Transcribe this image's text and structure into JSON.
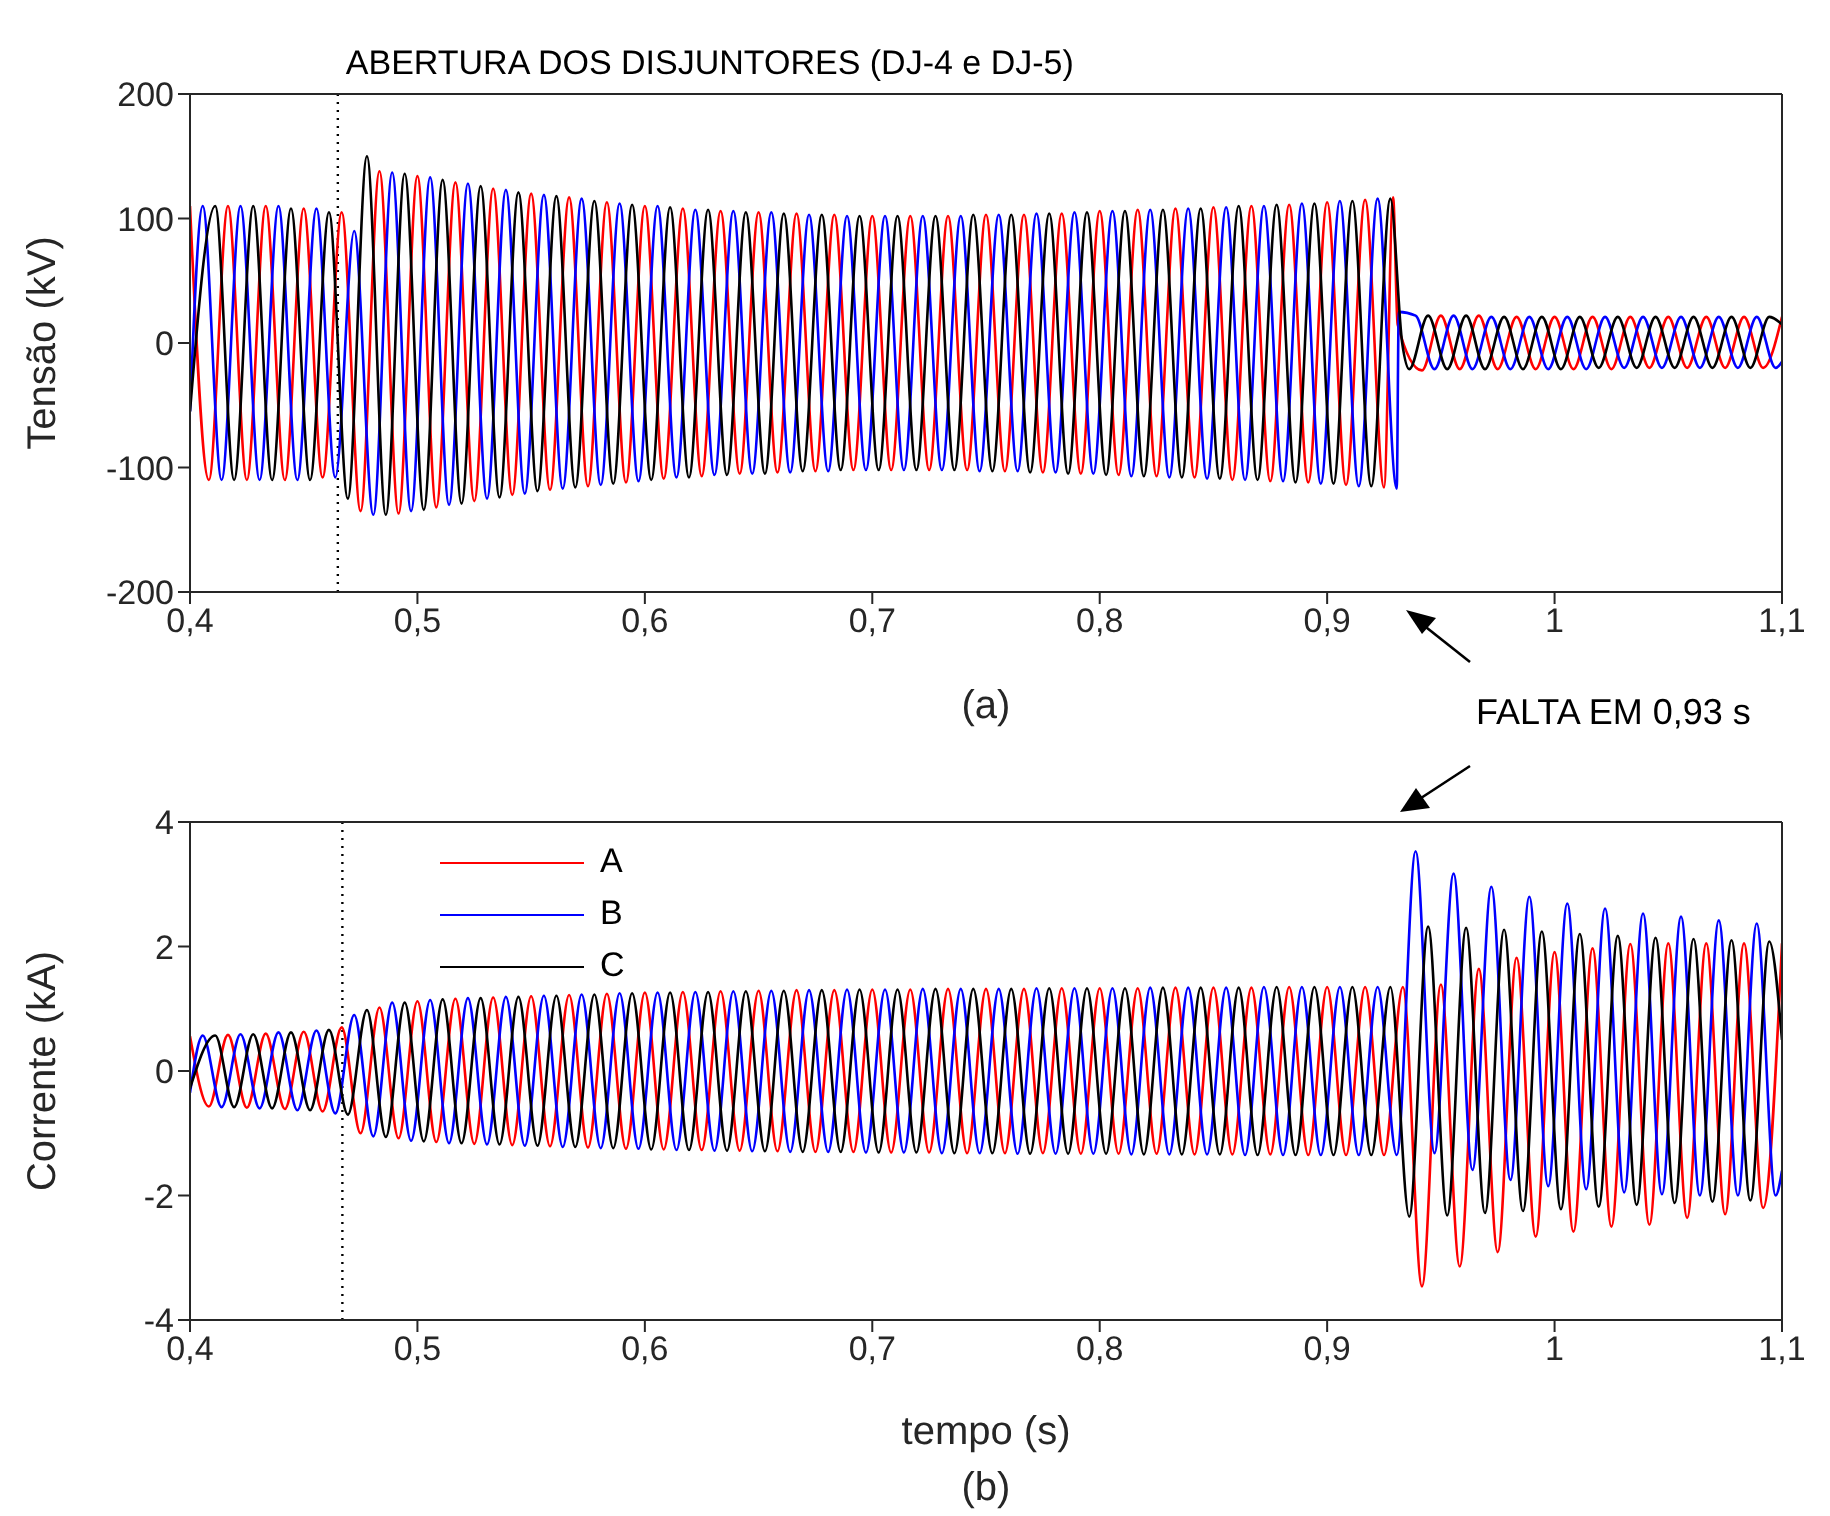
{
  "chart_data": [
    {
      "type": "line",
      "title": "(a)",
      "ylabel": "Tensão (kV)",
      "annotations": [
        "FALTA EM 0,93 s"
      ],
      "xlim": [
        0.4,
        1.1
      ],
      "xticks": [
        {
          "value": 0.4,
          "label": "0,4"
        },
        {
          "value": 0.5,
          "label": "0,5"
        },
        {
          "value": 0.6,
          "label": "0,6"
        },
        {
          "value": 0.7,
          "label": "0,7"
        },
        {
          "value": 0.8,
          "label": "0,8"
        },
        {
          "value": 0.9,
          "label": "0,9"
        },
        1,
        {
          "value": 1.1,
          "label": "1,1"
        }
      ],
      "ylim": [
        -200,
        200
      ],
      "yticks": [
        -200,
        -100,
        0,
        100,
        200
      ],
      "ref_lines": [
        {
          "axis": "x",
          "value": 0.465,
          "label": "ABERTURA DOS DISJUNTORES (DJ-4 e DJ-5)",
          "color": "#000000",
          "line_style": "dotted"
        }
      ],
      "series": [
        {
          "color": "#ff0000",
          "x": [
            0.4,
            0.4083,
            0.4167,
            0.425,
            0.4333,
            0.4417,
            0.45,
            0.4583,
            0.4667,
            0.475,
            0.4833,
            0.4917,
            0.5,
            0.5083,
            0.5167,
            0.525,
            0.5333,
            0.5417,
            0.55,
            0.5583,
            0.5667,
            0.575,
            0.5833,
            0.5917,
            0.6,
            0.6083,
            0.6167,
            0.625,
            0.6333,
            0.6417,
            0.65,
            0.6583,
            0.6667,
            0.675,
            0.6833,
            0.6917,
            0.7,
            0.7083,
            0.7167,
            0.725,
            0.7333,
            0.7417,
            0.75,
            0.7583,
            0.7667,
            0.775,
            0.7833,
            0.7917,
            0.8,
            0.8083,
            0.8167,
            0.825,
            0.8333,
            0.8417,
            0.85,
            0.8583,
            0.8667,
            0.875,
            0.8833,
            0.8917,
            0.9,
            0.9083,
            0.9167,
            0.925,
            0.929,
            0.931,
            0.9417,
            0.95,
            0.9583,
            0.9667,
            0.975,
            0.9833,
            0.9917,
            1.0,
            1.0083,
            1.0167,
            1.025,
            1.0333,
            1.0417,
            1.05,
            1.0583,
            1.0667,
            1.075,
            1.0833,
            1.0917,
            1.1
          ],
          "values": [
            110,
            -110,
            110,
            -110,
            110,
            -110,
            108,
            -108,
            105,
            -135,
            138,
            -137,
            134,
            -132,
            129,
            -127,
            124,
            -122,
            120,
            -118,
            117,
            -115,
            113,
            -112,
            110,
            -109,
            108,
            -107,
            106,
            -105,
            105,
            -104,
            104,
            -103,
            103,
            -102,
            102,
            -102,
            102,
            -102,
            102,
            -102,
            103,
            -103,
            103,
            -104,
            104,
            -105,
            106,
            -106,
            107,
            -107,
            108,
            -108,
            109,
            -110,
            110,
            -111,
            111,
            -112,
            113,
            -114,
            115,
            -116,
            117,
            15,
            -22,
            22,
            -21,
            22,
            -21,
            21,
            -21,
            21,
            -21,
            21,
            -21,
            21,
            -20,
            21,
            -20,
            21,
            -20,
            21,
            -20,
            21
          ]
        },
        {
          "color": "#0000ff",
          "x": [
            0.4,
            0.4056,
            0.4139,
            0.4222,
            0.4306,
            0.4389,
            0.4472,
            0.4556,
            0.4639,
            0.4722,
            0.4806,
            0.4889,
            0.4972,
            0.5056,
            0.5139,
            0.5222,
            0.5306,
            0.5389,
            0.5472,
            0.5556,
            0.5639,
            0.5722,
            0.5806,
            0.5889,
            0.5972,
            0.6056,
            0.6139,
            0.6222,
            0.6306,
            0.6389,
            0.6472,
            0.6556,
            0.6639,
            0.6722,
            0.6806,
            0.6889,
            0.6972,
            0.7056,
            0.7139,
            0.7222,
            0.7306,
            0.7389,
            0.7472,
            0.7556,
            0.7639,
            0.7722,
            0.7806,
            0.7889,
            0.7972,
            0.8056,
            0.8139,
            0.8222,
            0.8306,
            0.8389,
            0.8472,
            0.8556,
            0.8639,
            0.8722,
            0.8806,
            0.8889,
            0.8972,
            0.9056,
            0.9139,
            0.9222,
            0.9306,
            0.9315,
            0.9389,
            0.9472,
            0.9556,
            0.9639,
            0.9722,
            0.9806,
            0.9889,
            0.9972,
            1.0056,
            1.0139,
            1.0222,
            1.0306,
            1.0389,
            1.0472,
            1.0556,
            1.0639,
            1.0722,
            1.0806,
            1.0889,
            1.0972,
            1.1
          ],
          "values": [
            -55,
            110,
            -110,
            110,
            -110,
            110,
            -110,
            108,
            -108,
            90,
            -138,
            137,
            -135,
            133,
            -130,
            128,
            -125,
            123,
            -121,
            119,
            -117,
            116,
            -114,
            112,
            -111,
            110,
            -108,
            107,
            -106,
            106,
            -105,
            105,
            -104,
            103,
            -103,
            102,
            -102,
            102,
            -102,
            102,
            -102,
            102,
            -103,
            103,
            -103,
            104,
            -104,
            105,
            -105,
            106,
            -107,
            107,
            -108,
            108,
            -109,
            109,
            -110,
            110,
            -111,
            112,
            -113,
            114,
            -115,
            116,
            -117,
            25,
            22,
            -21,
            22,
            -21,
            21,
            -21,
            21,
            -21,
            21,
            -21,
            21,
            -20,
            21,
            -20,
            21,
            -20,
            21,
            -20,
            21,
            -20,
            -15
          ]
        },
        {
          "color": "#000000",
          "x": [
            0.4,
            0.4111,
            0.4194,
            0.4278,
            0.4361,
            0.4444,
            0.4528,
            0.4611,
            0.4694,
            0.4778,
            0.4861,
            0.4944,
            0.5028,
            0.5111,
            0.5194,
            0.5278,
            0.5361,
            0.5444,
            0.5528,
            0.5611,
            0.5694,
            0.5778,
            0.5861,
            0.5944,
            0.6028,
            0.6111,
            0.6194,
            0.6278,
            0.6361,
            0.6444,
            0.6528,
            0.6611,
            0.6694,
            0.6778,
            0.6861,
            0.6944,
            0.7028,
            0.7111,
            0.7194,
            0.7278,
            0.7361,
            0.7444,
            0.7528,
            0.7611,
            0.7694,
            0.7778,
            0.7861,
            0.7944,
            0.8028,
            0.8111,
            0.8194,
            0.8278,
            0.8361,
            0.8444,
            0.8528,
            0.8611,
            0.8694,
            0.8778,
            0.8861,
            0.8944,
            0.9028,
            0.9111,
            0.9194,
            0.9278,
            0.933,
            0.9361,
            0.9444,
            0.9528,
            0.9611,
            0.9694,
            0.9778,
            0.9861,
            0.9944,
            1.0028,
            1.0111,
            1.0194,
            1.0278,
            1.0361,
            1.0444,
            1.0528,
            1.0611,
            1.0694,
            1.0778,
            1.0861,
            1.0944,
            1.1
          ],
          "values": [
            -55,
            110,
            -110,
            110,
            -110,
            108,
            -110,
            105,
            -125,
            150,
            -138,
            136,
            -134,
            131,
            -129,
            126,
            -124,
            121,
            -119,
            118,
            -116,
            114,
            -113,
            111,
            -110,
            109,
            -108,
            107,
            -106,
            105,
            -105,
            104,
            -103,
            103,
            -102,
            102,
            -102,
            102,
            -102,
            102,
            -102,
            103,
            -103,
            103,
            -104,
            104,
            -105,
            105,
            -106,
            106,
            -107,
            107,
            -108,
            108,
            -109,
            110,
            -110,
            111,
            -112,
            112,
            -113,
            114,
            -115,
            116,
            0,
            -21,
            22,
            -21,
            22,
            -21,
            21,
            -21,
            21,
            -21,
            21,
            -20,
            21,
            -20,
            21,
            -20,
            21,
            -20,
            21,
            -20,
            21,
            15
          ]
        }
      ]
    },
    {
      "type": "line",
      "title": "(b)",
      "xlabel": "tempo (s)",
      "ylabel": "Corrente (kA)",
      "legend": "top left",
      "xlim": [
        0.4,
        1.1
      ],
      "xticks": [
        {
          "value": 0.4,
          "label": "0,4"
        },
        {
          "value": 0.5,
          "label": "0,5"
        },
        {
          "value": 0.6,
          "label": "0,6"
        },
        {
          "value": 0.7,
          "label": "0,7"
        },
        {
          "value": 0.8,
          "label": "0,8"
        },
        {
          "value": 0.9,
          "label": "0,9"
        },
        1,
        {
          "value": 1.1,
          "label": "1,1"
        }
      ],
      "ylim": [
        -4,
        4
      ],
      "yticks": [
        -4,
        -2,
        0,
        2,
        4
      ],
      "ref_lines": [
        {
          "axis": "x",
          "value": 0.467,
          "color": "#000000",
          "line_style": "dotted"
        }
      ],
      "series": [
        {
          "name": "A",
          "color": "#ff0000",
          "x": [
            0.4,
            0.4083,
            0.4167,
            0.425,
            0.4333,
            0.4417,
            0.45,
            0.4583,
            0.4667,
            0.475,
            0.4833,
            0.4917,
            0.5,
            0.5083,
            0.5167,
            0.525,
            0.5333,
            0.5417,
            0.55,
            0.5583,
            0.5667,
            0.575,
            0.5833,
            0.5917,
            0.6,
            0.6083,
            0.6167,
            0.625,
            0.6333,
            0.6417,
            0.65,
            0.6583,
            0.6667,
            0.675,
            0.6833,
            0.6917,
            0.7,
            0.7083,
            0.7167,
            0.725,
            0.7333,
            0.7417,
            0.75,
            0.7583,
            0.7667,
            0.775,
            0.7833,
            0.7917,
            0.8,
            0.8083,
            0.8167,
            0.825,
            0.8333,
            0.8417,
            0.85,
            0.8583,
            0.8667,
            0.875,
            0.8833,
            0.8917,
            0.9,
            0.9083,
            0.9167,
            0.925,
            0.9333,
            0.9417,
            0.95,
            0.9583,
            0.9667,
            0.975,
            0.9833,
            0.9917,
            1.0,
            1.0083,
            1.0167,
            1.025,
            1.0333,
            1.0417,
            1.05,
            1.0583,
            1.0667,
            1.075,
            1.0833,
            1.0917,
            1.1
          ],
          "values": [
            0.56,
            -0.57,
            0.58,
            -0.59,
            0.6,
            -0.61,
            0.63,
            -0.65,
            0.7,
            -1.0,
            1.02,
            -1.08,
            1.12,
            -1.14,
            1.16,
            -1.17,
            1.18,
            -1.19,
            1.2,
            -1.21,
            1.22,
            -1.23,
            1.24,
            -1.25,
            1.26,
            -1.26,
            1.27,
            -1.27,
            1.28,
            -1.28,
            1.29,
            -1.29,
            1.3,
            -1.3,
            1.3,
            -1.3,
            1.31,
            -1.31,
            1.31,
            -1.31,
            1.32,
            -1.32,
            1.32,
            -1.32,
            1.32,
            -1.32,
            1.33,
            -1.33,
            1.33,
            -1.33,
            1.33,
            -1.33,
            1.34,
            -1.34,
            1.34,
            -1.34,
            1.34,
            -1.34,
            1.35,
            -1.35,
            1.35,
            -1.35,
            1.35,
            -1.35,
            1.35,
            -3.46,
            1.39,
            -3.14,
            1.64,
            -2.91,
            1.82,
            -2.66,
            1.91,
            -2.58,
            1.97,
            -2.5,
            2.04,
            -2.47,
            2.05,
            -2.36,
            2.05,
            -2.3,
            2.05,
            -2.2,
            2.05
          ]
        },
        {
          "name": "B",
          "color": "#0000ff",
          "x": [
            0.4,
            0.4056,
            0.4139,
            0.4222,
            0.4306,
            0.4389,
            0.4472,
            0.4556,
            0.4639,
            0.4722,
            0.4806,
            0.4889,
            0.4972,
            0.5056,
            0.5139,
            0.5222,
            0.5306,
            0.5389,
            0.5472,
            0.5556,
            0.5639,
            0.5722,
            0.5806,
            0.5889,
            0.5972,
            0.6056,
            0.6139,
            0.6222,
            0.6306,
            0.6389,
            0.6472,
            0.6556,
            0.6639,
            0.6722,
            0.6806,
            0.6889,
            0.6972,
            0.7056,
            0.7139,
            0.7222,
            0.7306,
            0.7389,
            0.7472,
            0.7556,
            0.7639,
            0.7722,
            0.7806,
            0.7889,
            0.7972,
            0.8056,
            0.8139,
            0.8222,
            0.8306,
            0.8389,
            0.8472,
            0.8556,
            0.8639,
            0.8722,
            0.8806,
            0.8889,
            0.8972,
            0.9056,
            0.9139,
            0.9222,
            0.9306,
            0.9389,
            0.9472,
            0.9556,
            0.9639,
            0.9722,
            0.9806,
            0.9889,
            0.9972,
            1.0056,
            1.0139,
            1.0222,
            1.0306,
            1.0389,
            1.0472,
            1.0556,
            1.0639,
            1.0722,
            1.0806,
            1.0889,
            1.0972,
            1.1
          ],
          "values": [
            -0.35,
            0.57,
            -0.58,
            0.59,
            -0.6,
            0.62,
            -0.63,
            0.65,
            -0.68,
            0.9,
            -1.05,
            1.1,
            -1.12,
            1.14,
            -1.16,
            1.17,
            -1.18,
            1.19,
            -1.2,
            1.21,
            -1.22,
            1.23,
            -1.24,
            1.25,
            -1.25,
            1.26,
            -1.27,
            1.27,
            -1.28,
            1.28,
            -1.29,
            1.29,
            -1.3,
            1.3,
            -1.3,
            1.31,
            -1.31,
            1.31,
            -1.31,
            1.32,
            -1.32,
            1.32,
            -1.32,
            1.32,
            -1.33,
            1.33,
            -1.33,
            1.33,
            -1.33,
            1.33,
            -1.34,
            1.34,
            -1.34,
            1.34,
            -1.34,
            1.34,
            -1.35,
            1.35,
            -1.35,
            1.35,
            -1.35,
            1.35,
            -1.35,
            1.35,
            -1.35,
            3.53,
            -1.32,
            3.17,
            -1.59,
            2.96,
            -1.75,
            2.8,
            -1.85,
            2.69,
            -1.9,
            2.61,
            -1.95,
            2.53,
            -1.98,
            2.48,
            -2.0,
            2.42,
            -2.0,
            2.37,
            -2.0,
            -1.6
          ]
        },
        {
          "name": "C",
          "color": "#000000",
          "x": [
            0.4,
            0.4111,
            0.4194,
            0.4278,
            0.4361,
            0.4444,
            0.4528,
            0.4611,
            0.4694,
            0.4778,
            0.4861,
            0.4944,
            0.5028,
            0.5111,
            0.5194,
            0.5278,
            0.5361,
            0.5444,
            0.5528,
            0.5611,
            0.5694,
            0.5778,
            0.5861,
            0.5944,
            0.6028,
            0.6111,
            0.6194,
            0.6278,
            0.6361,
            0.6444,
            0.6528,
            0.6611,
            0.6694,
            0.6778,
            0.6861,
            0.6944,
            0.7028,
            0.7111,
            0.7194,
            0.7278,
            0.7361,
            0.7444,
            0.7528,
            0.7611,
            0.7694,
            0.7778,
            0.7861,
            0.7944,
            0.8028,
            0.8111,
            0.8194,
            0.8278,
            0.8361,
            0.8444,
            0.8528,
            0.8611,
            0.8694,
            0.8778,
            0.8861,
            0.8944,
            0.9028,
            0.9111,
            0.9194,
            0.9278,
            0.9361,
            0.9444,
            0.9528,
            0.9611,
            0.9694,
            0.9778,
            0.9861,
            0.9944,
            1.0028,
            1.0111,
            1.0194,
            1.0278,
            1.0361,
            1.0444,
            1.0528,
            1.0611,
            1.0694,
            1.0778,
            1.0861,
            1.0944,
            1.1
          ],
          "values": [
            -0.28,
            0.57,
            -0.58,
            0.59,
            -0.6,
            0.62,
            -0.63,
            0.66,
            -0.7,
            0.98,
            -1.06,
            1.1,
            -1.13,
            1.15,
            -1.16,
            1.17,
            -1.18,
            1.19,
            -1.2,
            1.21,
            -1.22,
            1.23,
            -1.24,
            1.25,
            -1.26,
            1.26,
            -1.27,
            1.27,
            -1.28,
            1.28,
            -1.29,
            1.29,
            -1.3,
            1.3,
            -1.3,
            1.31,
            -1.31,
            1.31,
            -1.31,
            1.32,
            -1.32,
            1.32,
            -1.32,
            1.32,
            -1.33,
            1.33,
            -1.33,
            1.33,
            -1.33,
            1.33,
            -1.34,
            1.34,
            -1.34,
            1.34,
            -1.34,
            1.34,
            -1.35,
            1.35,
            -1.35,
            1.35,
            -1.35,
            1.35,
            -1.35,
            1.35,
            -2.34,
            2.32,
            -2.32,
            2.3,
            -2.28,
            2.27,
            -2.25,
            2.24,
            -2.22,
            2.2,
            -2.18,
            2.17,
            -2.15,
            2.14,
            -2.12,
            2.12,
            -2.1,
            2.1,
            -2.08,
            2.08,
            0.5
          ]
        }
      ]
    }
  ]
}
